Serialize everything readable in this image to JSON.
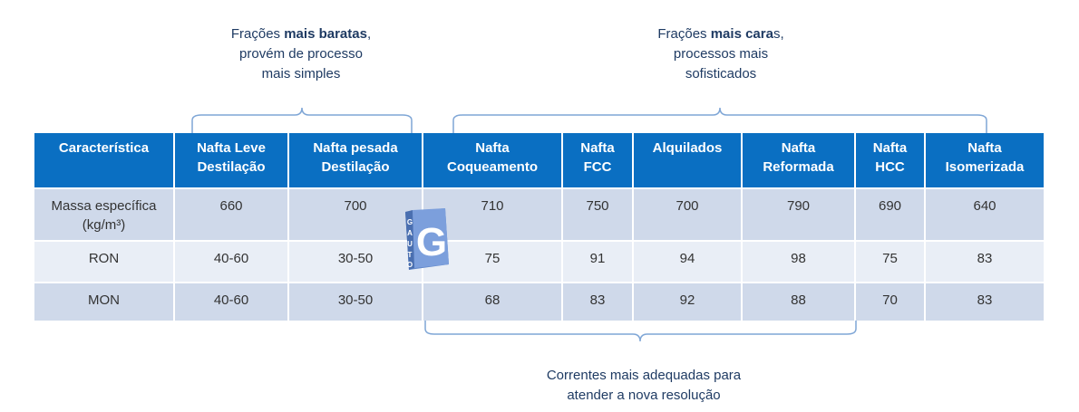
{
  "annotations": {
    "left": {
      "line1_pre": "Frações ",
      "line1_bold": "mais baratas",
      "line1_post": ",",
      "line2": "provém de processo",
      "line3": "mais simples"
    },
    "right": {
      "line1_pre": "Frações ",
      "line1_bold": "mais cara",
      "line1_post": "s,",
      "line2": "processos mais",
      "line3": "sofisticados"
    },
    "bottom": {
      "line1": "Correntes mais adequadas para",
      "line2": "atender a nova resolução"
    }
  },
  "table": {
    "headers": [
      [
        "Característica",
        ""
      ],
      [
        "Nafta Leve",
        "Destilação"
      ],
      [
        "Nafta pesada",
        "Destilação"
      ],
      [
        "Nafta",
        "Coqueamento"
      ],
      [
        "Nafta",
        "FCC"
      ],
      [
        "Alquilados",
        ""
      ],
      [
        "Nafta",
        "Reformada"
      ],
      [
        "Nafta",
        "HCC"
      ],
      [
        "Nafta",
        "Isomerizada"
      ]
    ],
    "rows": [
      {
        "label": [
          "Massa específica",
          "(kg/m³)"
        ],
        "values": [
          "660",
          "700",
          "710",
          "750",
          "700",
          "790",
          "690",
          "640"
        ]
      },
      {
        "label": [
          "RON",
          ""
        ],
        "values": [
          "40-60",
          "30-50",
          "75",
          "91",
          "94",
          "98",
          "75",
          "83"
        ]
      },
      {
        "label": [
          "MON",
          ""
        ],
        "values": [
          "40-60",
          "30-50",
          "68",
          "83",
          "92",
          "88",
          "70",
          "83"
        ]
      }
    ]
  },
  "logo": {
    "letters": [
      "G",
      "A",
      "U",
      "T",
      "O"
    ],
    "big_letter": "G",
    "color": "#6b8fcf"
  }
}
